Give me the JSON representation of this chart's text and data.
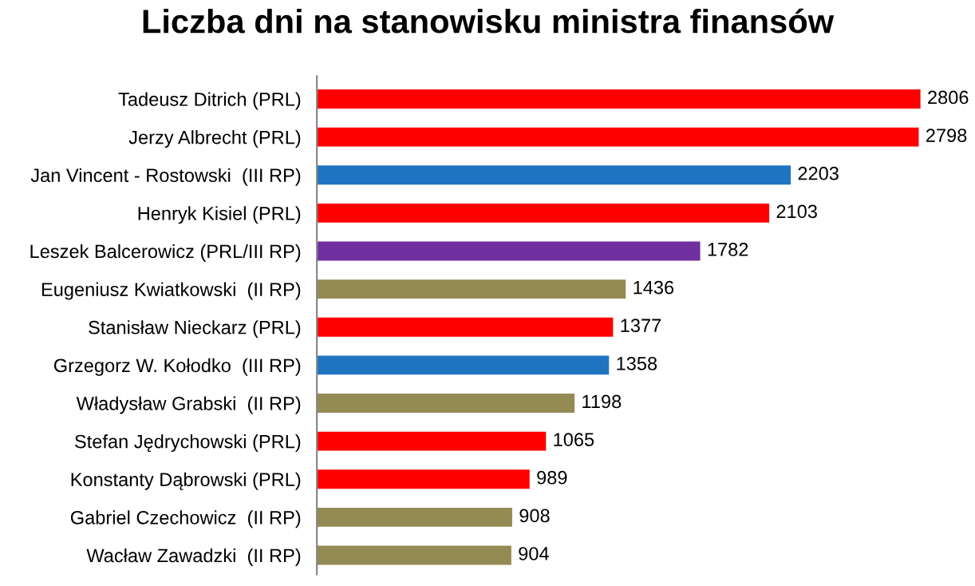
{
  "chart_data": {
    "type": "bar",
    "orientation": "horizontal",
    "title": "Liczba dni na stanowisku ministra finansów",
    "categories": [
      "Tadeusz Ditrich (PRL)",
      "Jerzy Albrecht (PRL)",
      "Jan Vincent - Rostowski  (III RP)",
      "Henryk Kisiel (PRL)",
      "Leszek Balcerowicz (PRL/III RP)",
      "Eugeniusz Kwiatkowski  (II RP)",
      "Stanisław Nieckarz (PRL)",
      "Grzegorz W. Kołodko  (III RP)",
      "Władysław Grabski  (II RP)",
      "Stefan Jędrychowski (PRL)",
      "Konstanty Dąbrowski (PRL)",
      "Gabriel Czechowicz  (II RP)",
      "Wacław Zawadzki  (II RP)"
    ],
    "values": [
      2806,
      2798,
      2203,
      2103,
      1782,
      1436,
      1377,
      1358,
      1198,
      1065,
      989,
      908,
      904
    ],
    "colors": [
      "#ff0000",
      "#ff0000",
      "#1f74c2",
      "#ff0000",
      "#7030a0",
      "#948a54",
      "#ff0000",
      "#1f74c2",
      "#948a54",
      "#ff0000",
      "#ff0000",
      "#948a54",
      "#948a54"
    ],
    "data_labels": true,
    "tick_labels": "y",
    "grid": false,
    "legend": false
  }
}
